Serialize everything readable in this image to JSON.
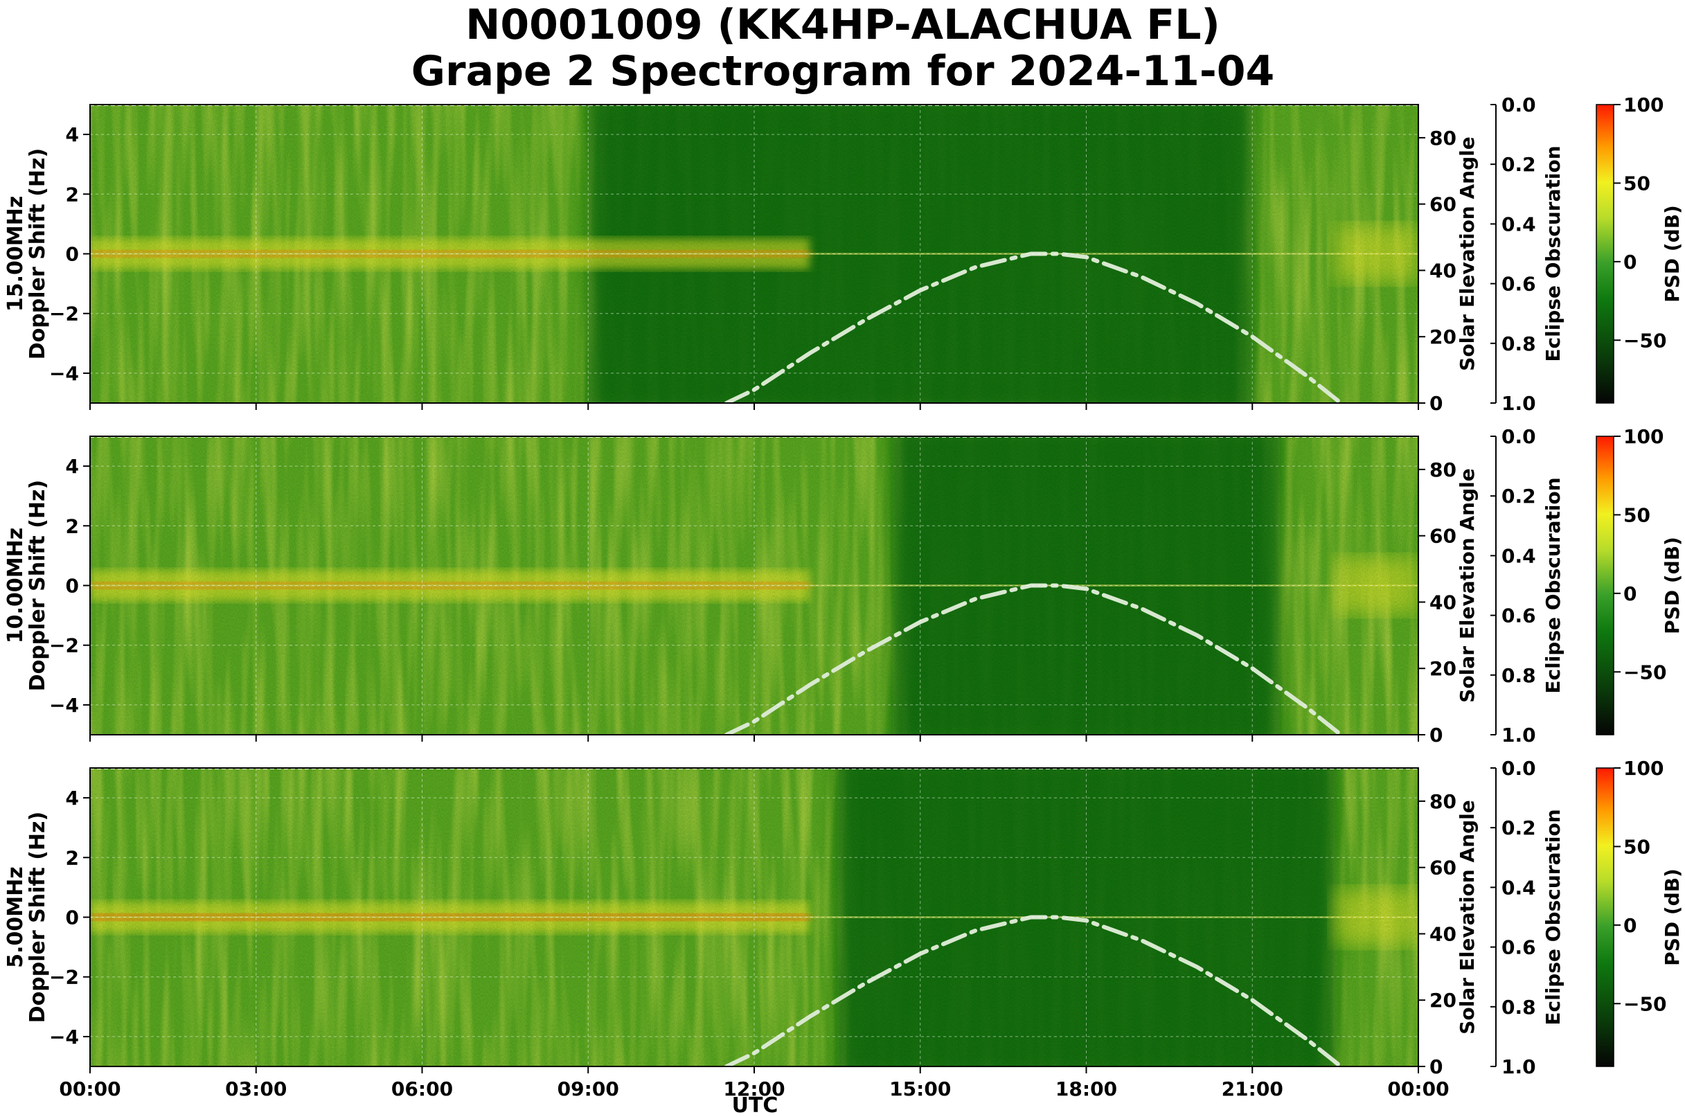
{
  "title_lines": [
    "N0001009 (KK4HP-ALACHUA FL)",
    "Grape 2 Spectrogram for 2024-11-04"
  ],
  "x_label": "UTC",
  "x_ticks": [
    "00:00",
    "03:00",
    "06:00",
    "09:00",
    "12:00",
    "15:00",
    "18:00",
    "21:00",
    "00:00"
  ],
  "left_axis_label": "Doppler Shift (Hz)",
  "right_axis_label": "Solar Elevation Angle",
  "eclipse_axis_label": "Eclipse Obscuration",
  "colorbar_label": "PSD (dB)",
  "colors": {
    "background_green": "#3a9a1a",
    "dark_green": "#0a6e0a",
    "yellow": "#e8ee2a",
    "red": "#ff2a00",
    "solar_curve": "#d8e8d0"
  },
  "chart_data": [
    {
      "type": "heatmap",
      "frequency_label": "15.00MHz",
      "ylabel": "Doppler Shift (Hz)",
      "xlabel": "",
      "x_range": [
        "00:00",
        "24:00"
      ],
      "ylim": [
        -5,
        5
      ],
      "y_ticks": [
        4,
        2,
        0,
        -2,
        -4
      ],
      "right_ylim": [
        0,
        90
      ],
      "right_ticks": [
        0,
        20,
        40,
        60,
        80
      ],
      "eclipse_ylim": [
        1.0,
        0.0
      ],
      "eclipse_ticks": [
        "0.0",
        "0.2",
        "0.4",
        "0.6",
        "0.8",
        "1.0"
      ],
      "colorbar": {
        "label": "PSD (dB)",
        "range": [
          -90,
          100
        ],
        "ticks": [
          100,
          50,
          0,
          -50
        ]
      },
      "solar_elevation": {
        "x_hours": [
          11.5,
          12,
          13,
          14,
          15,
          16,
          17,
          17.5,
          18,
          19,
          20,
          21,
          22,
          22.6
        ],
        "y_deg": [
          0,
          4,
          15,
          25,
          34,
          41,
          45,
          45,
          44,
          38,
          30,
          20,
          8,
          0
        ]
      },
      "features": {
        "dark_region_hours": [
          9,
          21
        ],
        "trace_center_hz": 0
      }
    },
    {
      "type": "heatmap",
      "frequency_label": "10.00MHz",
      "ylabel": "Doppler Shift (Hz)",
      "xlabel": "",
      "x_range": [
        "00:00",
        "24:00"
      ],
      "ylim": [
        -5,
        5
      ],
      "y_ticks": [
        4,
        2,
        0,
        -2,
        -4
      ],
      "right_ylim": [
        0,
        90
      ],
      "right_ticks": [
        0,
        20,
        40,
        60,
        80
      ],
      "eclipse_ylim": [
        1.0,
        0.0
      ],
      "eclipse_ticks": [
        "0.0",
        "0.2",
        "0.4",
        "0.6",
        "0.8",
        "1.0"
      ],
      "colorbar": {
        "label": "PSD (dB)",
        "range": [
          -90,
          100
        ],
        "ticks": [
          100,
          50,
          0,
          -50
        ]
      },
      "solar_elevation": {
        "x_hours": [
          11.5,
          12,
          13,
          14,
          15,
          16,
          17,
          17.5,
          18,
          19,
          20,
          21,
          22,
          22.6
        ],
        "y_deg": [
          0,
          4,
          15,
          25,
          34,
          41,
          45,
          45,
          44,
          38,
          30,
          20,
          8,
          0
        ]
      },
      "features": {
        "dark_region_hours": [
          14.5,
          21.5
        ],
        "trace_center_hz": 0
      }
    },
    {
      "type": "heatmap",
      "frequency_label": "5.00MHz",
      "ylabel": "Doppler Shift (Hz)",
      "xlabel": "UTC",
      "x_range": [
        "00:00",
        "24:00"
      ],
      "ylim": [
        -5,
        5
      ],
      "y_ticks": [
        4,
        2,
        0,
        -2,
        -4
      ],
      "right_ylim": [
        0,
        90
      ],
      "right_ticks": [
        0,
        20,
        40,
        60,
        80
      ],
      "eclipse_ylim": [
        1.0,
        0.0
      ],
      "eclipse_ticks": [
        "0.0",
        "0.2",
        "0.4",
        "0.6",
        "0.8",
        "1.0"
      ],
      "colorbar": {
        "label": "PSD (dB)",
        "range": [
          -90,
          100
        ],
        "ticks": [
          100,
          50,
          0,
          -50
        ]
      },
      "solar_elevation": {
        "x_hours": [
          11.5,
          12,
          13,
          14,
          15,
          16,
          17,
          17.5,
          18,
          19,
          20,
          21,
          22,
          22.6
        ],
        "y_deg": [
          0,
          4,
          15,
          25,
          34,
          41,
          45,
          45,
          44,
          38,
          30,
          20,
          8,
          0
        ]
      },
      "features": {
        "dark_region_hours": [
          13.5,
          22.5
        ],
        "trace_center_hz": 0
      }
    }
  ]
}
